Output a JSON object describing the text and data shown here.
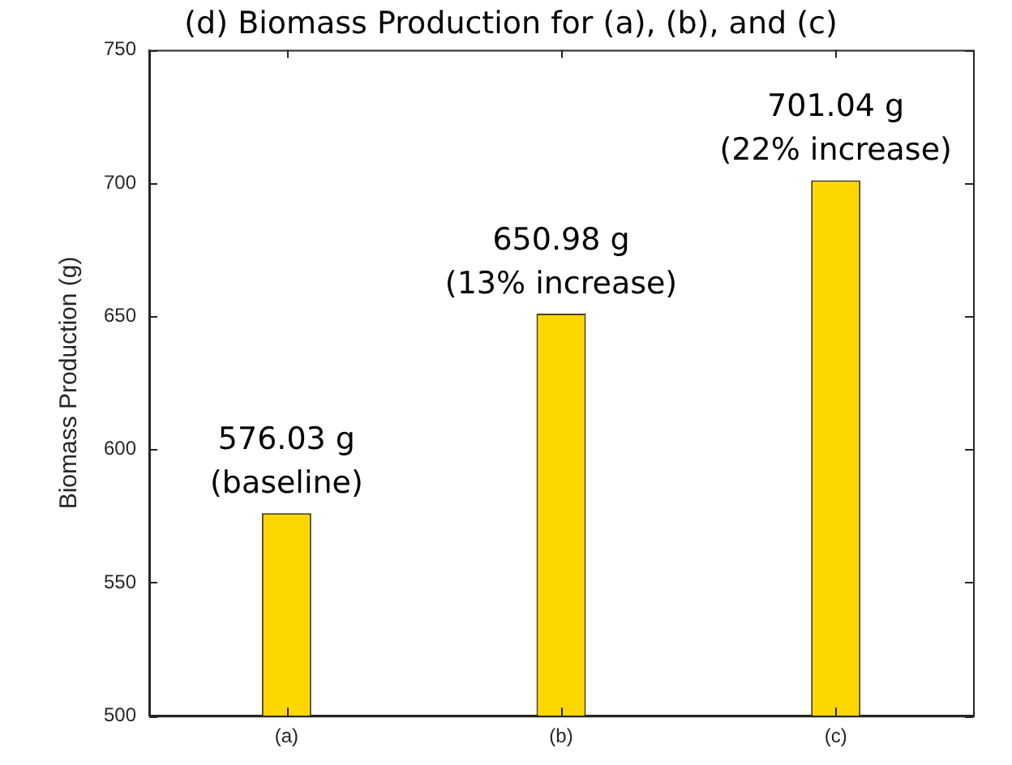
{
  "chart_data": {
    "type": "bar",
    "title": "(d) Biomass Production for (a), (b), and (c)",
    "ylabel": "Biomass Production (g)",
    "categories": [
      "(a)",
      "(b)",
      "(c)"
    ],
    "values": [
      576.03,
      650.98,
      701.04
    ],
    "value_labels": [
      "576.03 g\n(baseline)",
      "650.98 g\n(13% increase)",
      "701.04 g\n(22% increase)"
    ],
    "color": "#ffd700",
    "ylim": [
      500,
      750
    ],
    "yticks": [
      500,
      550,
      600,
      650,
      700,
      750
    ],
    "grid": false,
    "legend": false
  }
}
